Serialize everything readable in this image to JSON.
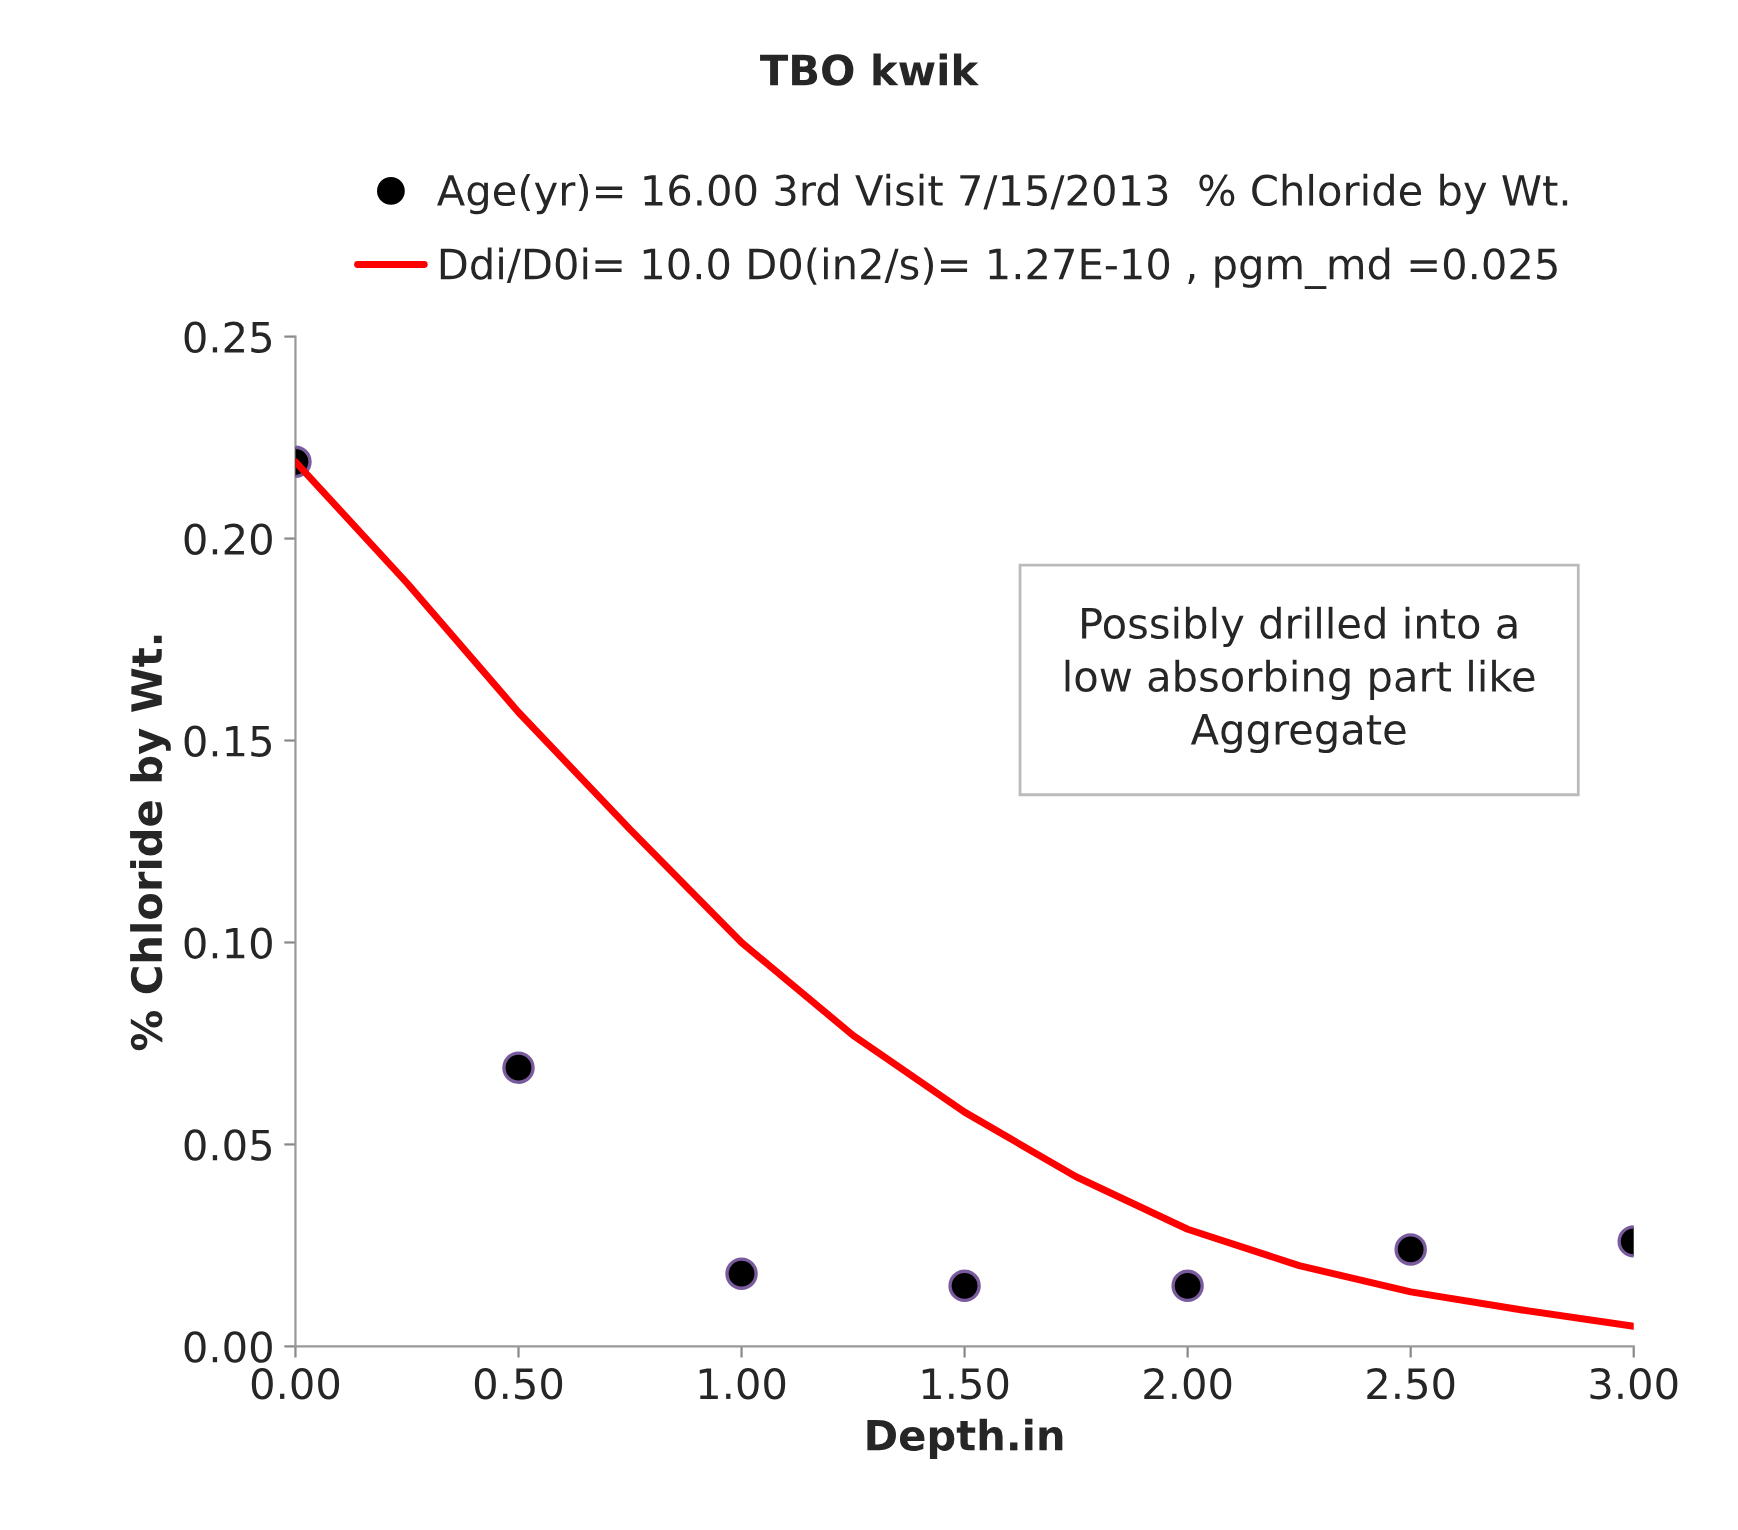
{
  "chart_data": {
    "type": "scatter",
    "title": "TBO kwik",
    "xlabel": "Depth.in",
    "ylabel": "% Chloride by Wt.",
    "xlim": [
      0,
      3
    ],
    "ylim": [
      0,
      0.25
    ],
    "xticks": [
      {
        "value": 0,
        "label": "0.00"
      },
      {
        "value": 0.5,
        "label": "0.50"
      },
      {
        "value": 1,
        "label": "1.00"
      },
      {
        "value": 1.5,
        "label": "1.50"
      },
      {
        "value": 2,
        "label": "2.00"
      },
      {
        "value": 2.5,
        "label": "2.50"
      },
      {
        "value": 3,
        "label": "3.00"
      }
    ],
    "yticks": [
      {
        "value": 0,
        "label": "0.00"
      },
      {
        "value": 0.05,
        "label": "0.05"
      },
      {
        "value": 0.1,
        "label": "0.10"
      },
      {
        "value": 0.15,
        "label": "0.15"
      },
      {
        "value": 0.2,
        "label": "0.20"
      },
      {
        "value": 0.25,
        "label": "0.25"
      }
    ],
    "grid": false,
    "legend": "top",
    "series": [
      {
        "name": "Age(yr)= 16.00 3rd Visit 7/15/2013  % Chloride by Wt.",
        "marker": "circle",
        "color": "#000000",
        "x": [
          0,
          0.5,
          1,
          1.5,
          2,
          2.5,
          3
        ],
        "values": [
          0.219,
          0.069,
          0.018,
          0.015,
          0.015,
          0.024,
          0.026
        ]
      },
      {
        "name": "Ddi/D0i= 10.0 D0(in2/s)= 1.27E-10 , pgm_md =0.025",
        "type": "line",
        "marker": "none",
        "line_style": "solid",
        "color": "#ff0000",
        "x": [
          0,
          0.25,
          0.5,
          0.75,
          1,
          1.25,
          1.5,
          1.75,
          2,
          2.25,
          2.5,
          2.75,
          3
        ],
        "values": [
          0.219,
          0.189,
          0.157,
          0.128,
          0.1,
          0.077,
          0.058,
          0.042,
          0.029,
          0.02,
          0.0135,
          0.009,
          0.005
        ]
      }
    ],
    "annotations": [
      "Possibly drilled into a\nlow absorbing part like\nAggregate"
    ]
  }
}
